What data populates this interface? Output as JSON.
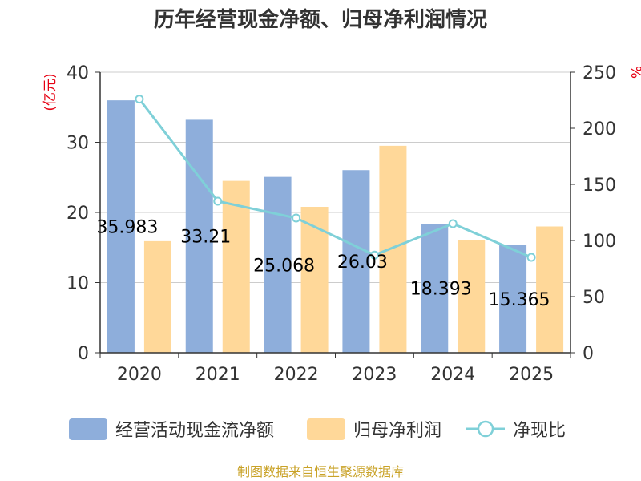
{
  "chart_data": {
    "type": "bar",
    "title": "历年经营现金净额、归母净利润情况",
    "categories": [
      "2020",
      "2021",
      "2022",
      "2023",
      "2024",
      "2025"
    ],
    "series": [
      {
        "name": "经营活动现金流净额",
        "type": "bar",
        "axis": "left",
        "color": "#8eaedb",
        "values": [
          35.983,
          33.21,
          25.068,
          26.03,
          18.393,
          15.365
        ],
        "data_labels": [
          "35.983",
          "33.21",
          "25.068",
          "26.03",
          "18.393",
          "15.365"
        ]
      },
      {
        "name": "归母净利润",
        "type": "bar",
        "axis": "left",
        "color": "#ffd899",
        "values": [
          15.9,
          24.5,
          20.8,
          29.5,
          16.0,
          18.0
        ]
      },
      {
        "name": "净现比",
        "type": "line",
        "axis": "right",
        "color": "#7fd0d8",
        "values": [
          226,
          135,
          120,
          87,
          115,
          85
        ]
      }
    ],
    "yaxis_left": {
      "unit": "(亿元)",
      "range": [
        0,
        40
      ],
      "ticks": [
        "0",
        "10",
        "20",
        "30",
        "40"
      ]
    },
    "yaxis_right": {
      "unit": "%",
      "range": [
        0,
        250
      ],
      "ticks": [
        "0",
        "50",
        "100",
        "150",
        "200",
        "250"
      ]
    },
    "grid": true,
    "legend_position": "bottom",
    "source": "制图数据来自恒生聚源数据库"
  }
}
